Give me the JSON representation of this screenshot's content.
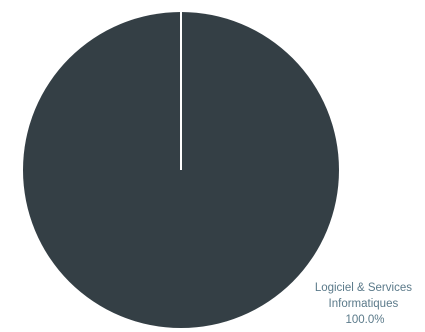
{
  "chart_data": {
    "type": "pie",
    "slices": [
      {
        "label_lines": [
          "Logiciel & Services",
          "Informatiques"
        ],
        "percent_label": "100.0%",
        "value": 100.0,
        "color": "#343f45"
      }
    ],
    "title": "",
    "legend": "none",
    "label_color": "#5b7a8a",
    "separator_color": "#ffffff"
  }
}
